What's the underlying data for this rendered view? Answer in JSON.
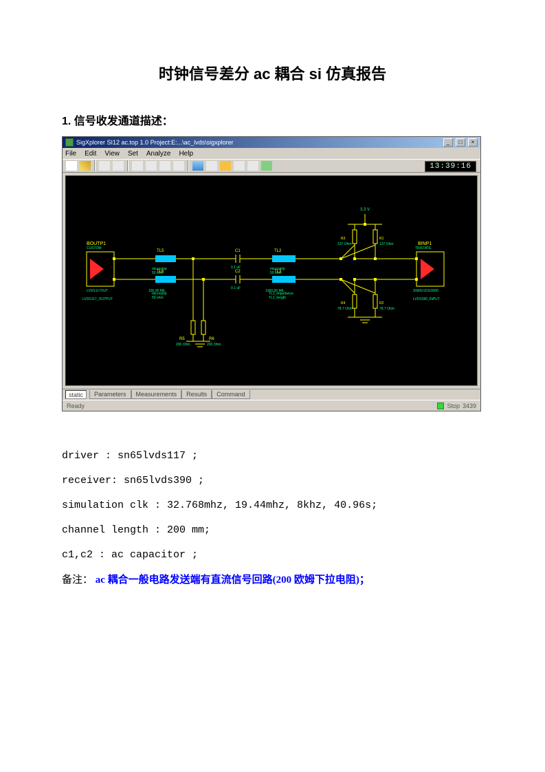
{
  "title": "时钟信号差分 ac 耦合 si 仿真报告",
  "section1_heading": "1. 信号收发通道描述：",
  "app": {
    "titlebar": "SigXplorer SI12 ac.top 1.0 Project:E:...\\ac_lvds\\sigxplorer",
    "menus": [
      "File",
      "Edit",
      "View",
      "Set",
      "Analyze",
      "Help"
    ],
    "clock": "13:39:16",
    "tabs_label": "static",
    "tabs": [
      "Parameters",
      "Measurements",
      "Results",
      "Command"
    ],
    "status_left": "Ready",
    "status_right": "Stop",
    "status_num": "3439"
  },
  "schematic": {
    "bg": "#000000",
    "wire_color": "#ffff00",
    "block_color": "#00c8ff",
    "label_color": "#00ff88",
    "driver_color": "#ff2a2a",
    "text_color": "#cccccc",
    "power_label": "3.3 V",
    "driver": {
      "name": "BOUTP1",
      "sub1": "CUSTOM",
      "sub2": "LVDS117OUT",
      "pin": "LVDS117_OUTPUT"
    },
    "receiver": {
      "name": "BINP1",
      "sub1": "TRISTATE",
      "sub2": "SN65LVDS390D",
      "pin": "LVDS390_INPUT"
    },
    "tl5": {
      "name": "TL5",
      "sub": "microstrip",
      "imp": "50 ohm",
      "len": "100.00 MIL"
    },
    "tl6": {
      "name": "TL6",
      "sub": "microstrip",
      "imp": "50 ohm",
      "len": "100.00 MIL"
    },
    "tl2": {
      "name": "TL2",
      "sub": "microstrip",
      "imp": "50 ohm",
      "len": "1000.00 MIL",
      "extra": "TL2_impedance"
    },
    "tl3": {
      "name": "TL3",
      "sub": "microstrip",
      "imp": "50 ohm",
      "len": "TL2_length",
      "extra": "TL2_impedance"
    },
    "c1": {
      "name": "C1",
      "val": "0.1 uF"
    },
    "c2": {
      "name": "C2",
      "val": "0.1 uF"
    },
    "r1": {
      "name": "R1",
      "val": "137 Ohm"
    },
    "r2": {
      "name": "R2",
      "val": "78.7 Ohm"
    },
    "r3": {
      "name": "R3",
      "val": "137 Ohm"
    },
    "r4": {
      "name": "R4",
      "val": "78.7 Ohm"
    },
    "r5": {
      "name": "R5",
      "val": "200 Ohm"
    },
    "r6": {
      "name": "R6",
      "val": "200 Ohm"
    }
  },
  "body": {
    "l1": "driver :  sn65lvds117 ;",
    "l2": "receiver: sn65lvds390 ;",
    "l3": "simulation clk :  32.768mhz, 19.44mhz, 8khz, 40.96s;",
    "l4": "channel length : 200 mm;",
    "l5": "c1,c2 : ac capacitor ;",
    "note_prefix": "备注：",
    "note": " ac 耦合一般电路发送端有直流信号回路(200 欧姆下拉电阻)；"
  }
}
